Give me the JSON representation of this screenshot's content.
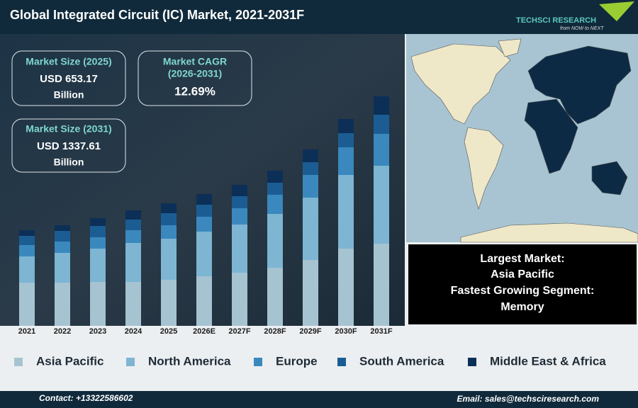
{
  "header": {
    "title": "Global Integrated Circuit (IC) Market, 2021-2031F",
    "logo": "TECHSCI RESEARCH",
    "tagline": "from NOW to NEXT"
  },
  "stats": [
    {
      "label": "Market Size (2025)",
      "value": "USD 653.17",
      "unit": "Billion"
    },
    {
      "label": "Market CAGR",
      "period": "(2026-2031)",
      "value": "12.69%"
    },
    {
      "label": "Market Size (2031)",
      "value": "USD 1337.61",
      "unit": "Billion"
    }
  ],
  "info": {
    "lines": [
      "Largest Market:",
      "Asia Pacific",
      "Fastest Growing Segment:",
      "Memory"
    ]
  },
  "footer": {
    "contact": "Contact: +13322586602",
    "email": "Email: sales@techsciresearch.com"
  },
  "chart_data": {
    "type": "stacked-bar",
    "categories": [
      "2021",
      "2022",
      "2023",
      "2024",
      "2025",
      "2026E",
      "2027F",
      "2028F",
      "2029F",
      "2030F",
      "2031F"
    ],
    "ylim": [
      0,
      340
    ],
    "series": [
      {
        "name": "Asia Pacific",
        "color": "#a6c3d1",
        "values": [
          61,
          61,
          62,
          62,
          65,
          70,
          75,
          82,
          93,
          109,
          116
        ]
      },
      {
        "name": "North America",
        "color": "#7db5d3",
        "values": [
          37,
          42,
          47,
          55,
          58,
          63,
          68,
          76,
          88,
          104,
          110
        ]
      },
      {
        "name": "Europe",
        "color": "#3a88bd",
        "values": [
          16,
          16,
          16,
          18,
          19,
          21,
          23,
          27,
          32,
          39,
          45
        ]
      },
      {
        "name": "South America",
        "color": "#1b5d93",
        "values": [
          13,
          15,
          16,
          15,
          17,
          17,
          17,
          17,
          18,
          20,
          27
        ]
      },
      {
        "name": "Middle East & Africa",
        "color": "#0c2f57",
        "values": [
          8,
          8,
          11,
          13,
          14,
          15,
          16,
          17,
          18,
          20,
          26
        ]
      }
    ]
  }
}
